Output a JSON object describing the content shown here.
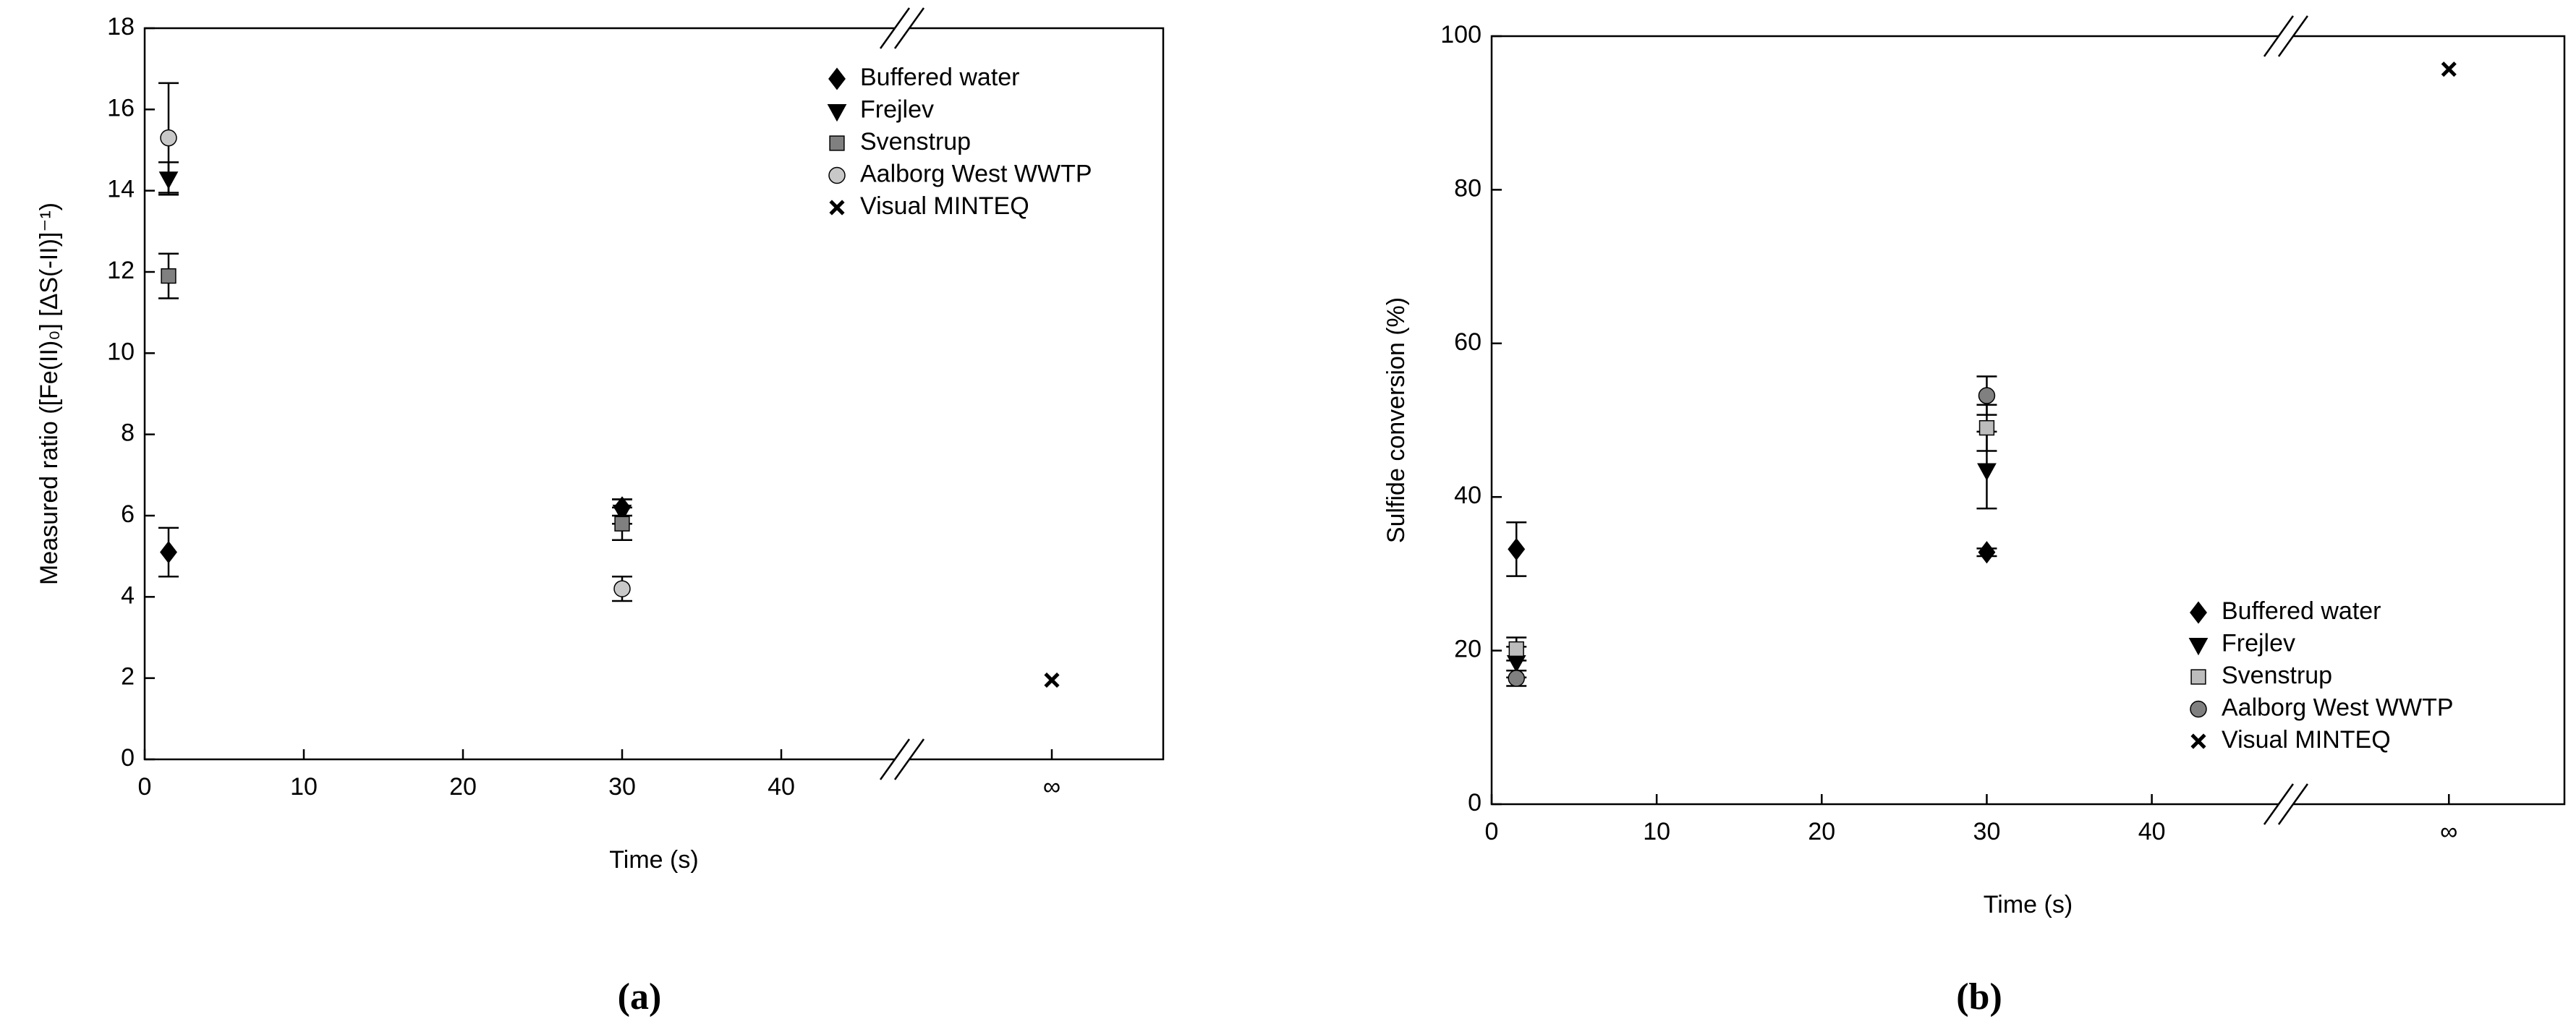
{
  "chart_data": [
    {
      "type": "scatter",
      "caption": "(a)",
      "x_label": "Time (s)",
      "y_label": "Measured ratio ([Fe(II)₀] [ΔS(-II)]⁻¹)",
      "xlim": [
        0,
        64
      ],
      "xticks": [
        0,
        10,
        20,
        30,
        40,
        {
          "value": 57,
          "label": "∞"
        }
      ],
      "ylim": [
        0,
        18
      ],
      "yticks": [
        0,
        2,
        4,
        6,
        8,
        10,
        12,
        14,
        16,
        18
      ],
      "legend": "upper right",
      "series": [
        {
          "name": "Buffered water",
          "color": "#000000",
          "marker": "diamond",
          "x": [
            1.5,
            30
          ],
          "values": [
            5.1,
            6.2
          ],
          "errors": [
            0.6,
            0.2
          ]
        },
        {
          "name": "Frejlev",
          "color": "#000000",
          "marker": "triangle-down",
          "x": [
            1.5,
            30
          ],
          "values": [
            14.3,
            6.1
          ],
          "errors": [
            0.4,
            0.3
          ]
        },
        {
          "name": "Svenstrup",
          "color": "#808080",
          "marker": "square",
          "x": [
            1.5,
            30
          ],
          "values": [
            11.9,
            5.8
          ],
          "errors": [
            0.55,
            0.4
          ]
        },
        {
          "name": "Aalborg West WWTP",
          "color": "#c8c8c8",
          "marker": "circle",
          "x": [
            1.5,
            30
          ],
          "values": [
            15.3,
            4.2
          ],
          "errors": [
            1.35,
            0.3
          ]
        },
        {
          "name": "Visual MINTEQ",
          "color": "#000000",
          "marker": "x",
          "x": [
            57
          ],
          "values": [
            1.95
          ]
        }
      ]
    },
    {
      "type": "scatter",
      "caption": "(b)",
      "x_label": "Time (s)",
      "y_label": "Sulfide conversion (%)",
      "xlim": [
        0,
        65
      ],
      "xticks": [
        0,
        10,
        20,
        30,
        40,
        {
          "value": 58,
          "label": "∞"
        }
      ],
      "ylim": [
        0,
        100
      ],
      "yticks": [
        0,
        20,
        40,
        60,
        80,
        100
      ],
      "legend": "lower right",
      "series": [
        {
          "name": "Buffered water",
          "color": "#000000",
          "marker": "diamond",
          "x": [
            1.5,
            30
          ],
          "values": [
            33.2,
            32.8
          ],
          "errors": [
            3.5,
            0.5
          ]
        },
        {
          "name": "Frejlev",
          "color": "#000000",
          "marker": "triangle-down",
          "x": [
            1.5,
            30
          ],
          "values": [
            18.5,
            43.5
          ],
          "errors": [
            2,
            5
          ]
        },
        {
          "name": "Svenstrup",
          "color": "#bcbcbc",
          "marker": "square",
          "x": [
            1.5,
            30
          ],
          "values": [
            20.2,
            49
          ],
          "errors": [
            1.5,
            3
          ]
        },
        {
          "name": "Aalborg West WWTP",
          "color": "#808080",
          "marker": "circle",
          "x": [
            1.5,
            30
          ],
          "values": [
            16.4,
            53.2
          ],
          "errors": [
            1,
            2.5
          ]
        },
        {
          "name": "Visual MINTEQ",
          "color": "#000000",
          "marker": "x",
          "x": [
            58
          ],
          "values": [
            95.7
          ]
        }
      ]
    }
  ]
}
